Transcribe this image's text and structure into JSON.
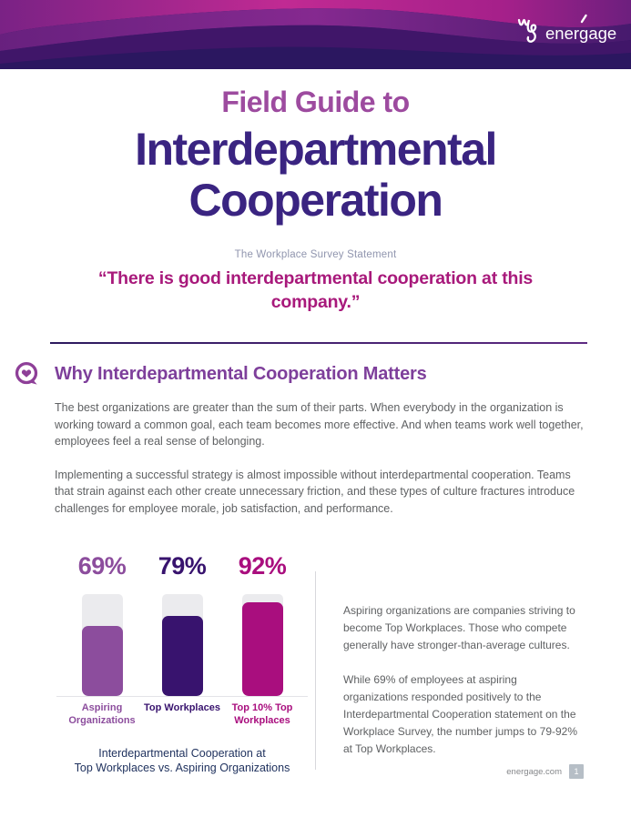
{
  "header": {
    "logo_text": "energage",
    "logo_mark_icon": "we-script-icon"
  },
  "title": {
    "kicker": "Field Guide to",
    "heading_line1": "Interdepartmental",
    "heading_line2": "Cooperation"
  },
  "statement": {
    "label": "The Workplace Survey Statement",
    "quote": "“There is good interdepartmental cooperation at this company.”"
  },
  "section": {
    "icon": "chat-heart-icon",
    "heading": "Why Interdepartmental Cooperation Matters",
    "paragraphs": [
      "The best organizations are greater than the sum of their parts. When everybody in the organization is working toward a common goal, each team becomes more effective. And when teams work well together, employees feel a real sense of belonging.",
      "Implementing a successful strategy is almost impossible without interdepartmental cooperation. Teams that strain against each other create unnecessary friction, and these types of culture fractures introduce challenges for employee morale, job satisfaction, and performance."
    ]
  },
  "chart_data": {
    "type": "bar",
    "title": "Interdepartmental Cooperation at Top Workplaces vs. Aspiring Organizations",
    "caption_lines": [
      "Interdepartmental Cooperation at",
      "Top Workplaces vs. Aspiring Organizations"
    ],
    "categories": [
      "Aspiring Organizations",
      "Top Workplaces",
      "Top 10% Top Workplaces"
    ],
    "values": [
      69,
      79,
      92
    ],
    "value_labels": [
      "69%",
      "79%",
      "92%"
    ],
    "colors": [
      "#8c4d9d",
      "#38136e",
      "#a90e7e"
    ],
    "track_color": "#ebebee",
    "ylim": [
      0,
      100
    ],
    "grid": false,
    "legend": "none"
  },
  "sidebar_text": {
    "paragraphs": [
      "Aspiring organizations are companies striving to become Top Workplaces. Those who compete generally have stronger-than-average cultures.",
      "While 69% of employees at aspiring organizations responded positively to the Interdepartmental Cooperation statement on the Workplace Survey, the number jumps to 79-92% at Top Workplaces."
    ]
  },
  "footer": {
    "site": "energage.com",
    "page_number": "1"
  },
  "colors": {
    "header_base": "#2b1760",
    "header_magenta": "#c12a93",
    "header_purple": "#7c2488",
    "kicker": "#9d4b9f",
    "main_title": "#3a2481",
    "statement_label": "#9095ae",
    "quote": "#a8197b",
    "section_heading": "#7e3f9b",
    "body_text": "#5f6163",
    "caption": "#21335f",
    "badge": "#b6bec6"
  }
}
